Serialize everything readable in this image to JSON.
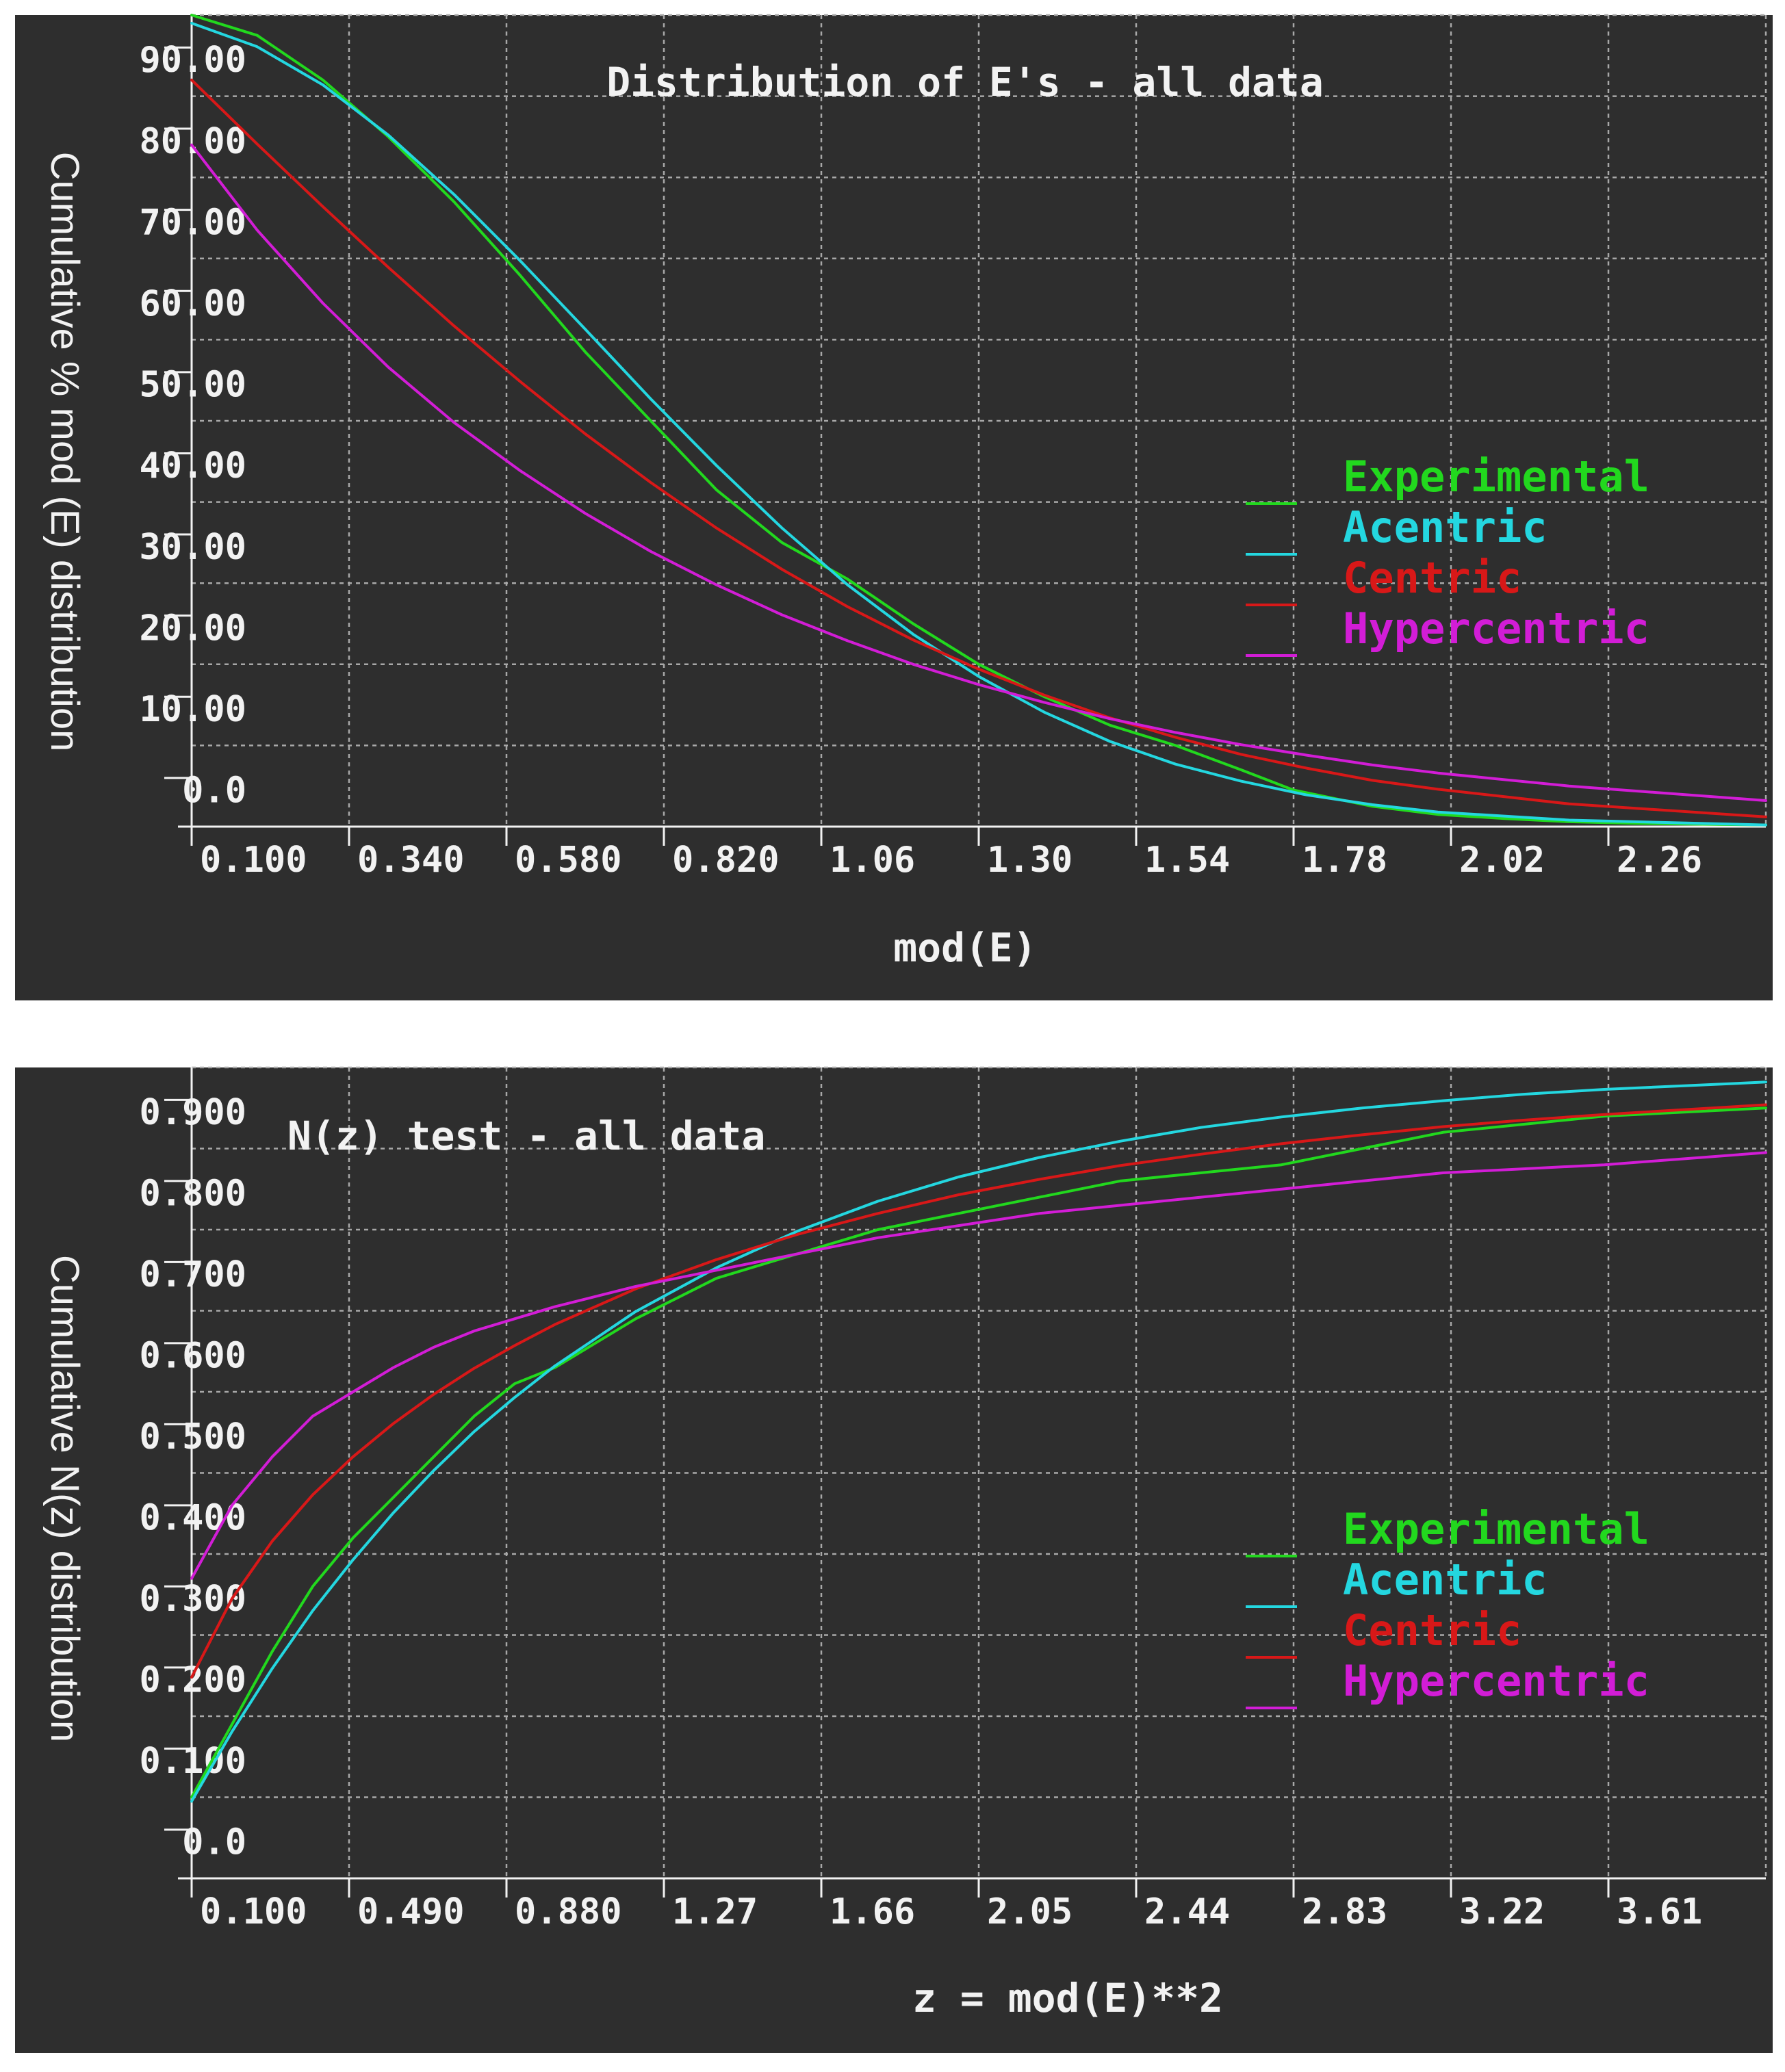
{
  "colors": {
    "background": "#2e2e2e",
    "text": "#f2f2f2",
    "grid": "#a8a8a8",
    "experimental": "#22d81e",
    "acentric": "#24d7e0",
    "centric": "#d81818",
    "hypercentric": "#d21dd6"
  },
  "chart_data": [
    {
      "type": "line",
      "title": "Distribution of E's - all data",
      "xlabel": "mod(E)",
      "ylabel": "Cumulative % mod (E) distribution",
      "xlim": [
        0.1,
        2.5
      ],
      "ylim": [
        0,
        100
      ],
      "x_ticks": [
        "0.100",
        "0.340",
        "0.580",
        "0.820",
        "1.06",
        "1.30",
        "1.54",
        "1.78",
        "2.02",
        "2.26"
      ],
      "y_ticks": [
        "0.0",
        "10.00",
        "20.00",
        "30.00",
        "40.00",
        "50.00",
        "60.00",
        "70.00",
        "80.00",
        "90.00"
      ],
      "legend_position": "right",
      "grid": true,
      "series": [
        {
          "name": "Experimental",
          "color_key": "experimental",
          "x": [
            0.1,
            0.2,
            0.3,
            0.4,
            0.5,
            0.6,
            0.7,
            0.8,
            0.9,
            1.0,
            1.1,
            1.2,
            1.3,
            1.4,
            1.5,
            1.6,
            1.7,
            1.78,
            1.9,
            2.0,
            2.1,
            2.2,
            2.3,
            2.5
          ],
          "y": [
            100,
            97.5,
            92,
            85,
            77,
            68,
            58.5,
            50,
            41.5,
            35,
            30.5,
            25,
            20,
            16,
            12.5,
            10,
            7,
            4.5,
            2.5,
            1.5,
            1.0,
            0.6,
            0.4,
            0.2
          ]
        },
        {
          "name": "Acentric",
          "color_key": "acentric",
          "x": [
            0.1,
            0.2,
            0.3,
            0.4,
            0.5,
            0.6,
            0.7,
            0.8,
            0.9,
            1.0,
            1.1,
            1.2,
            1.3,
            1.4,
            1.5,
            1.6,
            1.7,
            1.8,
            1.9,
            2.0,
            2.2,
            2.5
          ],
          "y": [
            99.0,
            96.1,
            91.4,
            85.2,
            77.9,
            69.8,
            61.3,
            52.7,
            44.5,
            36.8,
            29.8,
            23.7,
            18.5,
            14.1,
            10.5,
            7.7,
            5.6,
            3.9,
            2.7,
            1.8,
            0.8,
            0.2
          ]
        },
        {
          "name": "Centric",
          "color_key": "centric",
          "x": [
            0.1,
            0.2,
            0.3,
            0.4,
            0.5,
            0.6,
            0.7,
            0.8,
            0.9,
            1.0,
            1.1,
            1.2,
            1.3,
            1.4,
            1.5,
            1.6,
            1.7,
            1.8,
            1.9,
            2.0,
            2.2,
            2.5
          ],
          "y": [
            92.0,
            84.1,
            76.4,
            68.9,
            61.7,
            54.9,
            48.4,
            42.4,
            36.8,
            31.7,
            27.1,
            23.0,
            19.4,
            16.2,
            13.4,
            11.0,
            8.9,
            7.2,
            5.7,
            4.6,
            2.8,
            1.2
          ]
        },
        {
          "name": "Hypercentric",
          "color_key": "hypercentric",
          "x": [
            0.1,
            0.2,
            0.3,
            0.4,
            0.5,
            0.6,
            0.7,
            0.8,
            0.9,
            1.0,
            1.1,
            1.2,
            1.3,
            1.4,
            1.5,
            1.6,
            1.7,
            1.8,
            1.9,
            2.0,
            2.2,
            2.5
          ],
          "y": [
            84.0,
            73.5,
            64.5,
            56.6,
            49.8,
            43.9,
            38.6,
            33.9,
            29.8,
            26.1,
            22.9,
            20.0,
            17.5,
            15.3,
            13.3,
            11.6,
            10.1,
            8.8,
            7.6,
            6.6,
            5.0,
            3.2
          ]
        }
      ]
    },
    {
      "type": "line",
      "title": "N(z) test - all data",
      "xlabel": "z = mod(E)**2",
      "ylabel": "Cumulative N(z) distribution",
      "xlim": [
        0.1,
        4.0
      ],
      "ylim": [
        0,
        1.0
      ],
      "x_ticks": [
        "0.100",
        "0.490",
        "0.880",
        "1.27",
        "1.66",
        "2.05",
        "2.44",
        "2.83",
        "3.22",
        "3.61"
      ],
      "y_ticks": [
        "0.0",
        "0.100",
        "0.200",
        "0.300",
        "0.400",
        "0.500",
        "0.600",
        "0.700",
        "0.800",
        "0.900"
      ],
      "legend_position": "right",
      "grid": true,
      "series": [
        {
          "name": "Experimental",
          "color_key": "experimental",
          "x": [
            0.1,
            0.2,
            0.3,
            0.4,
            0.5,
            0.6,
            0.7,
            0.8,
            0.9,
            1.0,
            1.2,
            1.4,
            1.6,
            1.8,
            2.0,
            2.2,
            2.4,
            2.6,
            2.8,
            3.0,
            3.2,
            3.4,
            3.6,
            4.0
          ],
          "y": [
            0.1,
            0.19,
            0.28,
            0.36,
            0.42,
            0.47,
            0.52,
            0.57,
            0.61,
            0.63,
            0.69,
            0.74,
            0.77,
            0.8,
            0.82,
            0.84,
            0.86,
            0.87,
            0.88,
            0.9,
            0.92,
            0.93,
            0.94,
            0.95
          ]
        },
        {
          "name": "Acentric",
          "color_key": "acentric",
          "x": [
            0.1,
            0.2,
            0.3,
            0.4,
            0.5,
            0.6,
            0.7,
            0.8,
            0.9,
            1.0,
            1.2,
            1.4,
            1.6,
            1.8,
            2.0,
            2.2,
            2.4,
            2.6,
            2.8,
            3.0,
            3.2,
            3.4,
            3.6,
            4.0
          ],
          "y": [
            0.095,
            0.181,
            0.259,
            0.33,
            0.393,
            0.451,
            0.503,
            0.551,
            0.593,
            0.632,
            0.699,
            0.753,
            0.798,
            0.835,
            0.865,
            0.889,
            0.909,
            0.926,
            0.939,
            0.95,
            0.959,
            0.967,
            0.973,
            0.982
          ]
        },
        {
          "name": "Centric",
          "color_key": "centric",
          "x": [
            0.1,
            0.2,
            0.3,
            0.4,
            0.5,
            0.6,
            0.7,
            0.8,
            0.9,
            1.0,
            1.2,
            1.4,
            1.6,
            1.8,
            2.0,
            2.2,
            2.4,
            2.6,
            2.8,
            3.0,
            3.2,
            3.4,
            3.6,
            4.0
          ],
          "y": [
            0.248,
            0.345,
            0.416,
            0.473,
            0.52,
            0.561,
            0.597,
            0.629,
            0.657,
            0.683,
            0.727,
            0.763,
            0.794,
            0.82,
            0.843,
            0.862,
            0.879,
            0.893,
            0.906,
            0.917,
            0.927,
            0.935,
            0.942,
            0.954
          ]
        },
        {
          "name": "Hypercentric",
          "color_key": "hypercentric",
          "x": [
            0.1,
            0.2,
            0.3,
            0.4,
            0.5,
            0.6,
            0.7,
            0.8,
            0.9,
            1.0,
            1.2,
            1.4,
            1.6,
            1.8,
            2.0,
            2.2,
            2.4,
            2.6,
            2.8,
            3.0,
            3.2,
            3.4,
            3.6,
            4.0
          ],
          "y": [
            0.37,
            0.46,
            0.52,
            0.57,
            0.6,
            0.63,
            0.655,
            0.675,
            0.69,
            0.705,
            0.73,
            0.75,
            0.77,
            0.79,
            0.805,
            0.82,
            0.83,
            0.84,
            0.85,
            0.86,
            0.87,
            0.875,
            0.88,
            0.895
          ]
        }
      ]
    }
  ]
}
